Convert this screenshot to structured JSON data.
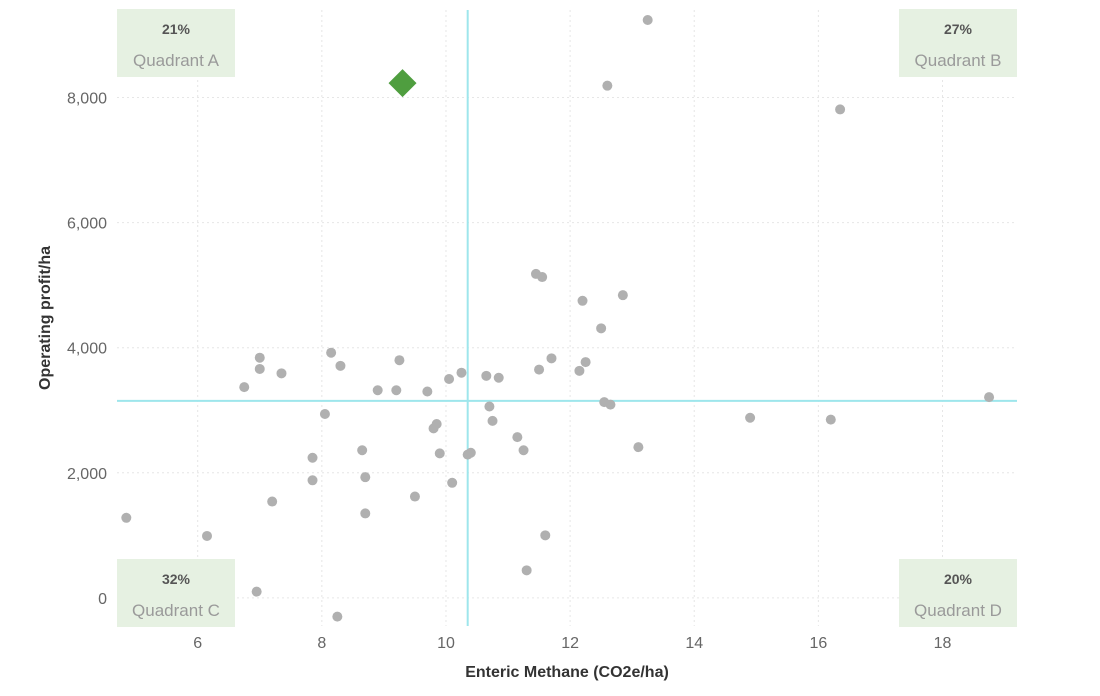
{
  "chart_data": {
    "type": "scatter",
    "xlabel": "Enteric Methane (CO2e/ha)",
    "ylabel": "Operating profit/ha",
    "xlim": [
      4.7,
      19.2
    ],
    "ylim": [
      -450,
      9400
    ],
    "x_ticks": [
      6,
      8,
      10,
      12,
      14,
      16,
      18
    ],
    "y_ticks": [
      0,
      2000,
      4000,
      6000,
      8000
    ],
    "x_tick_labels": [
      "6",
      "8",
      "10",
      "12",
      "14",
      "16",
      "18"
    ],
    "y_tick_labels": [
      "0",
      "2,000",
      "4,000",
      "6,000",
      "8,000"
    ],
    "grid": true,
    "reference_lines": {
      "x": 10.35,
      "y": 3150,
      "color": "#9ee6ec"
    },
    "point_color": "#b0b0b0",
    "highlight_color": "#4f9e3f",
    "highlight": {
      "x": 9.3,
      "y": 8230,
      "marker": "diamond"
    },
    "quadrants": [
      {
        "id": "A",
        "percent": "21%",
        "label": "Quadrant A",
        "position": "top-left"
      },
      {
        "id": "B",
        "percent": "27%",
        "label": "Quadrant B",
        "position": "top-right"
      },
      {
        "id": "C",
        "percent": "32%",
        "label": "Quadrant C",
        "position": "bottom-left"
      },
      {
        "id": "D",
        "percent": "20%",
        "label": "Quadrant D",
        "position": "bottom-right"
      }
    ],
    "quadrant_box_color": "#e6f1e2",
    "points": [
      {
        "x": 4.85,
        "y": 1280
      },
      {
        "x": 6.15,
        "y": 990
      },
      {
        "x": 6.75,
        "y": 3370
      },
      {
        "x": 6.95,
        "y": 100
      },
      {
        "x": 7.0,
        "y": 3840
      },
      {
        "x": 7.0,
        "y": 3660
      },
      {
        "x": 7.2,
        "y": 1540
      },
      {
        "x": 7.35,
        "y": 3590
      },
      {
        "x": 7.85,
        "y": 2240
      },
      {
        "x": 7.85,
        "y": 1880
      },
      {
        "x": 8.05,
        "y": 2940
      },
      {
        "x": 8.15,
        "y": 3920
      },
      {
        "x": 8.25,
        "y": -300
      },
      {
        "x": 8.3,
        "y": 3710
      },
      {
        "x": 8.65,
        "y": 2360
      },
      {
        "x": 8.7,
        "y": 1930
      },
      {
        "x": 8.7,
        "y": 1350
      },
      {
        "x": 8.9,
        "y": 3320
      },
      {
        "x": 9.2,
        "y": 3320
      },
      {
        "x": 9.25,
        "y": 3800
      },
      {
        "x": 9.5,
        "y": 1620
      },
      {
        "x": 9.7,
        "y": 3300
      },
      {
        "x": 9.8,
        "y": 2710
      },
      {
        "x": 9.85,
        "y": 2780
      },
      {
        "x": 9.9,
        "y": 2310
      },
      {
        "x": 10.05,
        "y": 3500
      },
      {
        "x": 10.1,
        "y": 1840
      },
      {
        "x": 10.25,
        "y": 3600
      },
      {
        "x": 10.35,
        "y": 2290
      },
      {
        "x": 10.4,
        "y": 2320
      },
      {
        "x": 10.65,
        "y": 3550
      },
      {
        "x": 10.7,
        "y": 3060
      },
      {
        "x": 10.75,
        "y": 2830
      },
      {
        "x": 10.85,
        "y": 3520
      },
      {
        "x": 11.15,
        "y": 2570
      },
      {
        "x": 11.25,
        "y": 2360
      },
      {
        "x": 11.3,
        "y": 440
      },
      {
        "x": 11.45,
        "y": 5180
      },
      {
        "x": 11.5,
        "y": 3650
      },
      {
        "x": 11.55,
        "y": 5130
      },
      {
        "x": 11.6,
        "y": 1000
      },
      {
        "x": 11.7,
        "y": 3830
      },
      {
        "x": 12.15,
        "y": 3630
      },
      {
        "x": 12.2,
        "y": 4750
      },
      {
        "x": 12.25,
        "y": 3770
      },
      {
        "x": 12.5,
        "y": 4310
      },
      {
        "x": 12.55,
        "y": 3130
      },
      {
        "x": 12.65,
        "y": 3090
      },
      {
        "x": 12.6,
        "y": 8190
      },
      {
        "x": 12.85,
        "y": 4840
      },
      {
        "x": 13.1,
        "y": 2410
      },
      {
        "x": 13.25,
        "y": 9240
      },
      {
        "x": 14.9,
        "y": 2880
      },
      {
        "x": 16.2,
        "y": 2850
      },
      {
        "x": 16.35,
        "y": 7810
      },
      {
        "x": 18.75,
        "y": 3210
      }
    ]
  }
}
